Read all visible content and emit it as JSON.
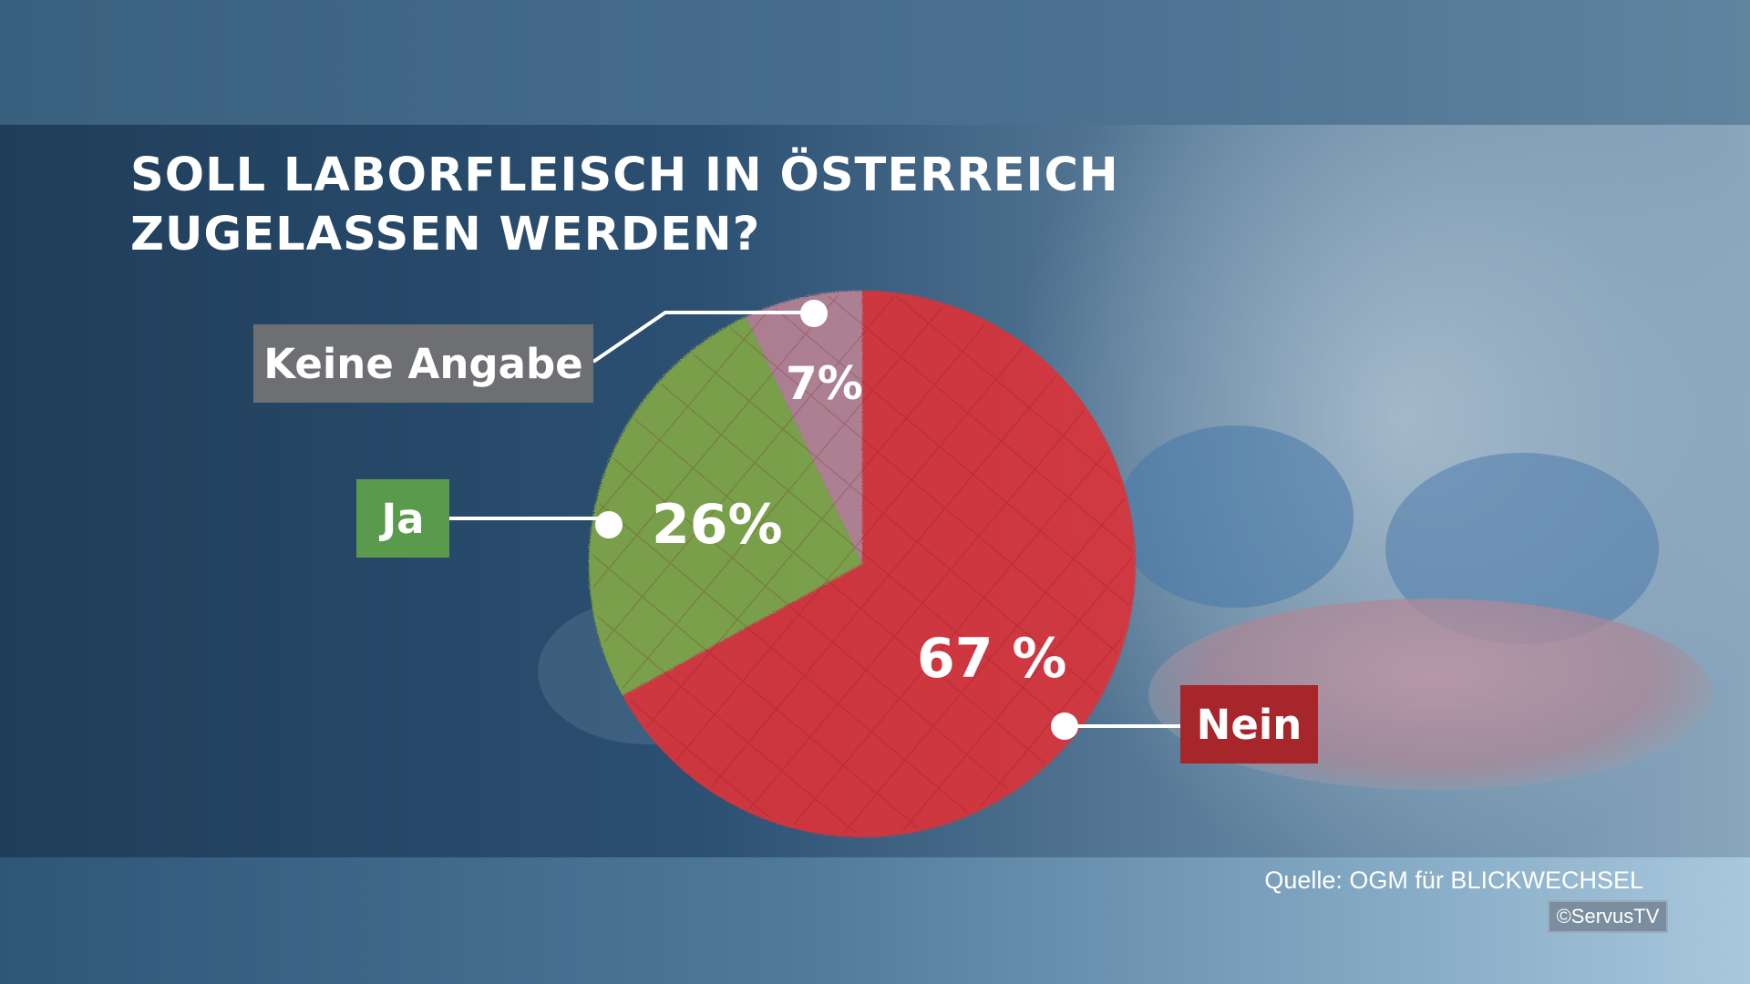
{
  "title": {
    "line1": "SOLL LABORFLEISCH IN ÖSTERREICH",
    "line2": "ZUGELASSEN WERDEN?"
  },
  "chart_data": {
    "type": "pie",
    "title": "SOLL LABORFLEISCH IN ÖSTERREICH ZUGELASSEN WERDEN?",
    "categories": [
      "Nein",
      "Ja",
      "Keine Angabe"
    ],
    "values": [
      67,
      26,
      7
    ],
    "value_labels": [
      "67 %",
      "26%",
      "7%"
    ],
    "colors": [
      "#d8343a",
      "#7fa548",
      "#c98a97"
    ],
    "start": "top",
    "direction": "clockwise"
  },
  "legend": {
    "keine_angabe": "Keine Angabe",
    "ja": "Ja",
    "nein": "Nein"
  },
  "footer": {
    "source": "Quelle: OGM für BLICKWECHSEL",
    "copyright": "©ServusTV"
  }
}
